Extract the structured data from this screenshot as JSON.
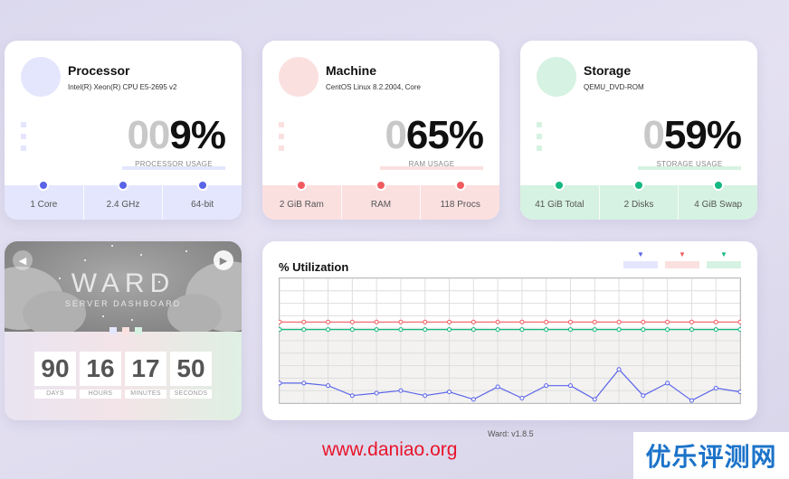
{
  "colors": {
    "processor_accent": "#5a64e8",
    "processor_light": "#e4e6fd",
    "ram_accent": "#f05b61",
    "ram_light": "#fbe0e0",
    "storage_accent": "#14b881",
    "storage_light": "#d6f2e2"
  },
  "processor": {
    "title": "Processor",
    "subtitle": "Intel(R) Xeon(R) CPU E5-2695 v2",
    "usage_lead": "00",
    "usage_value": "9%",
    "usage_label": "PROCESSOR USAGE",
    "footer": [
      "1 Core",
      "2.4 GHz",
      "64-bit"
    ]
  },
  "machine": {
    "title": "Machine",
    "subtitle": "CentOS Linux 8.2.2004, Core",
    "usage_lead": "0",
    "usage_value": "65%",
    "usage_label": "RAM USAGE",
    "footer": [
      "2 GiB Ram",
      "RAM",
      "118 Procs"
    ]
  },
  "storage": {
    "title": "Storage",
    "subtitle": "QEMU_DVD-ROM",
    "usage_lead": "0",
    "usage_value": "59%",
    "usage_label": "STORAGE USAGE",
    "footer": [
      "41 GiB Total",
      "2 Disks",
      "4 GiB Swap"
    ]
  },
  "ward": {
    "title": "WARD",
    "subtitle": "SERVER DASHBOARD",
    "nav_prev_icon": "arrow-left-icon",
    "nav_next_icon": "arrow-right-icon",
    "countdown": [
      {
        "value": "90",
        "label": "DAYS"
      },
      {
        "value": "16",
        "label": "HOURS"
      },
      {
        "value": "17",
        "label": "MINUTES"
      },
      {
        "value": "50",
        "label": "SECONDS"
      }
    ]
  },
  "utilization": {
    "title": "% Utilization",
    "legend_icon": "triangle-down-icon"
  },
  "chart_data": {
    "type": "line",
    "title": "% Utilization",
    "ylim": [
      0,
      100
    ],
    "grid": true,
    "legend": "top-right",
    "series": [
      {
        "color": "#f05b61",
        "values": [
          65,
          65,
          65,
          65,
          65,
          65,
          65,
          65,
          65,
          65,
          65,
          65,
          65,
          65,
          65,
          65,
          65,
          65,
          65,
          65
        ]
      },
      {
        "color": "#14b881",
        "values": [
          59,
          59,
          59,
          59,
          59,
          59,
          59,
          59,
          59,
          59,
          59,
          59,
          59,
          59,
          59,
          59,
          59,
          59,
          59,
          59
        ]
      },
      {
        "color": "#5a64e8",
        "values": [
          16,
          16,
          14,
          6,
          8,
          10,
          6,
          9,
          3,
          13,
          4,
          14,
          14,
          3,
          27,
          6,
          16,
          2,
          12,
          9
        ]
      }
    ]
  },
  "footer": {
    "version": "Ward: v1.8.5",
    "site_url": "www.daniao.org",
    "watermark": "优乐评测网"
  }
}
